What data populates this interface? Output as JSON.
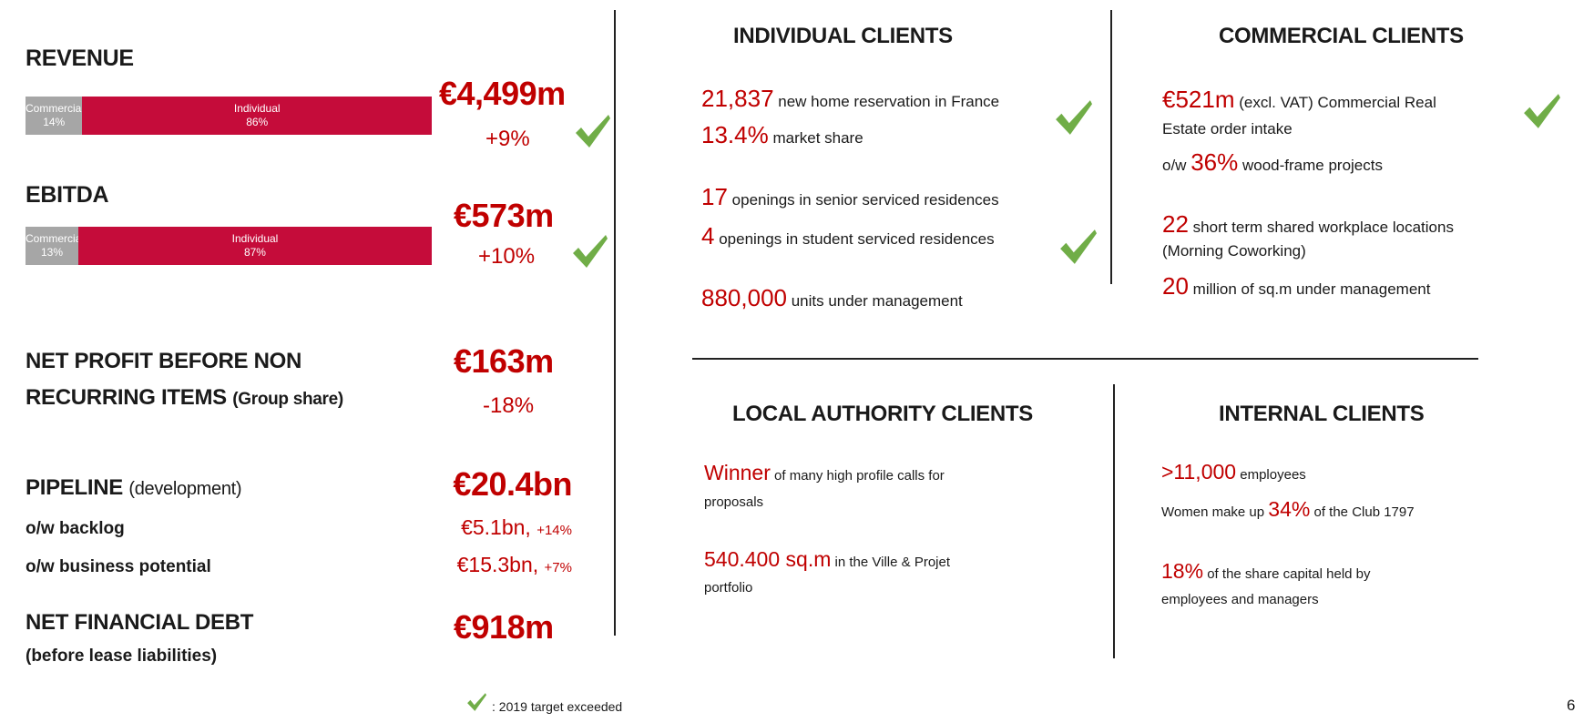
{
  "colors": {
    "accent_red": "#c00000",
    "bar_individual": "#c50c3a",
    "bar_commercial": "#a6a6a6",
    "check_green": "#70ad47"
  },
  "left": {
    "revenue": {
      "title": "REVENUE",
      "value": "€4,499m",
      "change": "+9%",
      "target_exceeded": true,
      "bar": [
        {
          "label": "Commercial",
          "pct_label": "14%",
          "pct": 14
        },
        {
          "label": "Individual",
          "pct_label": "86%",
          "pct": 86
        }
      ]
    },
    "ebitda": {
      "title": "EBITDA",
      "value": "€573m",
      "change": "+10%",
      "target_exceeded": true,
      "bar": [
        {
          "label": "Commercial",
          "pct_label": "13%",
          "pct": 13
        },
        {
          "label": "Individual",
          "pct_label": "87%",
          "pct": 87
        }
      ]
    },
    "net_profit": {
      "title_line1": "NET PROFIT BEFORE NON",
      "title_line2": "RECURRING ITEMS",
      "title_note": "(Group share)",
      "value": "€163m",
      "change": "-18%"
    },
    "pipeline": {
      "title": "PIPELINE",
      "title_note": "(development)",
      "value": "€20.4bn",
      "rows": [
        {
          "label": "o/w backlog",
          "value": "€5.1bn,",
          "change": "+14%"
        },
        {
          "label": "o/w business potential",
          "value": "€15.3bn,",
          "change": "+7%"
        }
      ]
    },
    "net_debt": {
      "title": "NET FINANCIAL DEBT",
      "title_note": "(before lease liabilities)",
      "value": "€918m"
    }
  },
  "individual": {
    "title": "INDIVIDUAL CLIENTS",
    "items": [
      {
        "num": "21,837",
        "text": "new home reservation in France"
      },
      {
        "num": "13.4%",
        "text": "market share"
      },
      {
        "num": "17",
        "text": "openings in senior serviced residences"
      },
      {
        "num": "4",
        "text": "openings in student serviced residences"
      },
      {
        "num": "880,000",
        "text": "units under management"
      }
    ]
  },
  "commercial": {
    "title": "COMMERCIAL CLIENTS",
    "items": [
      {
        "num": "€521m",
        "text": "(excl. VAT) Commercial Real"
      },
      {
        "text": "Estate order intake"
      },
      {
        "pre": "o/w",
        "num": "36%",
        "text": "wood-frame projects"
      },
      {
        "num": "22",
        "text": "short term shared workplace locations"
      },
      {
        "text": "(Morning Coworking)"
      },
      {
        "num": "20",
        "text": "million of sq.m under management"
      }
    ]
  },
  "local": {
    "title": "LOCAL AUTHORITY CLIENTS",
    "items": [
      {
        "num": "Winner",
        "text": "of many high profile calls for"
      },
      {
        "text": "proposals"
      },
      {
        "num": "540.400 sq.m",
        "text": "in the Ville & Projet"
      },
      {
        "text": "portfolio"
      }
    ]
  },
  "internal": {
    "title": "INTERNAL CLIENTS",
    "items": [
      {
        "num": ">11,000",
        "text": "employees"
      },
      {
        "pre": "Women make up",
        "num": "34%",
        "text": "of the Club 1797"
      },
      {
        "num": "18%",
        "text": "of the share capital held by"
      },
      {
        "text": "employees and managers"
      }
    ]
  },
  "footer": {
    "legend": ": 2019 target exceeded",
    "legend_icon": "check-icon",
    "page_number": "6"
  }
}
